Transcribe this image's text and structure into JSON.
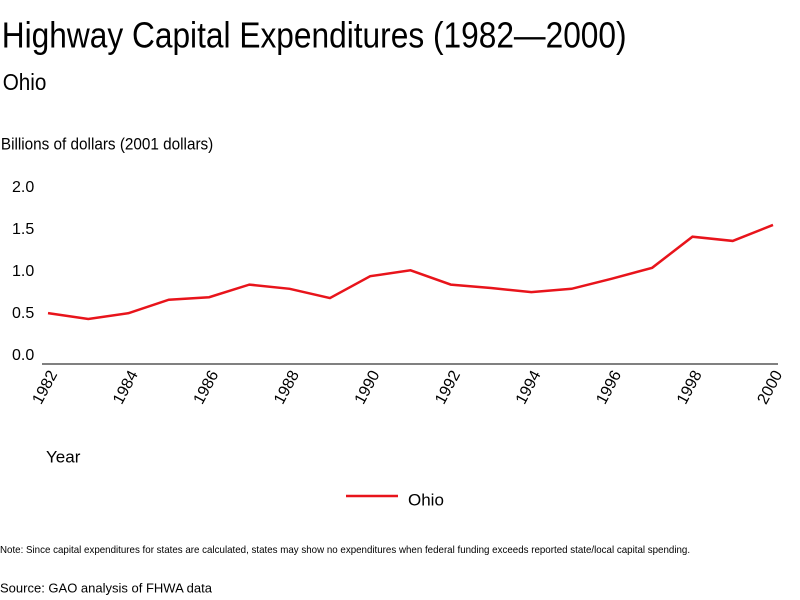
{
  "chart_data": {
    "type": "line",
    "title": "Highway Capital Expenditures (1982—2000)",
    "subtitle": "Ohio",
    "y_label": "Billions of dollars (2001 dollars)",
    "x_label": "Year",
    "x": [
      1982,
      1983,
      1984,
      1985,
      1986,
      1987,
      1988,
      1989,
      1990,
      1991,
      1992,
      1993,
      1994,
      1995,
      1996,
      1997,
      1998,
      1999,
      2000
    ],
    "series": [
      {
        "name": "Ohio",
        "color": "#e8141b",
        "values": [
          0.51,
          0.44,
          0.51,
          0.67,
          0.7,
          0.85,
          0.8,
          0.69,
          0.95,
          1.02,
          0.85,
          0.81,
          0.76,
          0.8,
          0.92,
          1.05,
          1.42,
          1.37,
          1.56
        ]
      }
    ],
    "xlim": [
      1982,
      2000
    ],
    "xticks": [
      1982,
      1984,
      1986,
      1988,
      1990,
      1992,
      1994,
      1996,
      1998,
      2000
    ],
    "ylim": [
      0,
      2
    ],
    "yticks": [
      {
        "value": 0,
        "label": "0.0"
      },
      0.5,
      {
        "value": 1,
        "label": "1.0"
      },
      1.5,
      {
        "value": 2,
        "label": "2.0"
      }
    ],
    "note": "Note: Since capital expenditures for states are calculated, states may show no expenditures when federal funding exceeds reported state/local capital spending.",
    "source": "Source: GAO analysis of FHWA data"
  }
}
